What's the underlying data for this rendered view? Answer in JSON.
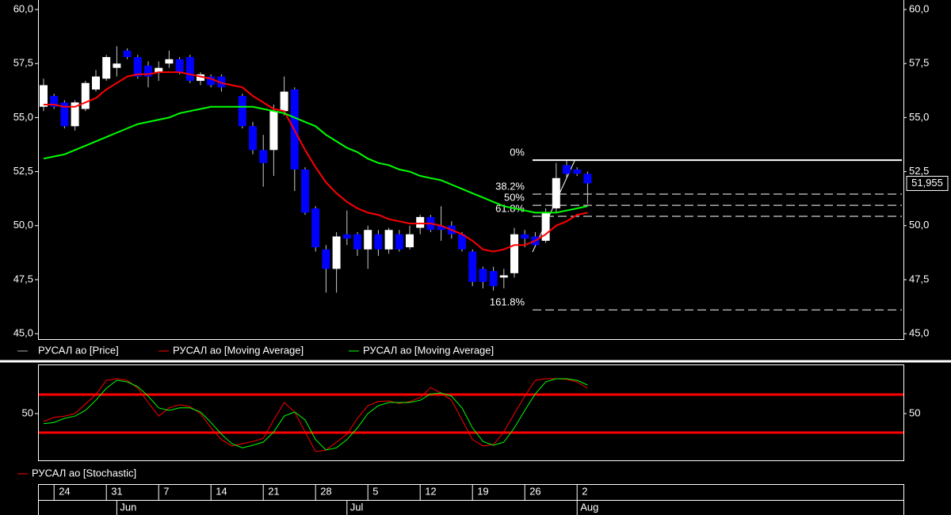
{
  "chart_data": [
    {
      "type": "candlestick",
      "categories": [
        null,
        "24",
        null,
        null,
        null,
        null,
        "31",
        null,
        null,
        null,
        null,
        "7",
        null,
        null,
        null,
        null,
        "14",
        null,
        null,
        null,
        null,
        "21",
        null,
        null,
        null,
        null,
        "28",
        null,
        null,
        null,
        null,
        "5",
        null,
        null,
        null,
        null,
        "12",
        null,
        null,
        null,
        null,
        "19",
        null,
        null,
        null,
        null,
        "26",
        null,
        null,
        null,
        null,
        "2",
        null
      ],
      "months": [
        null,
        null,
        null,
        null,
        null,
        null,
        null,
        "Jun",
        null,
        null,
        null,
        null,
        null,
        null,
        null,
        null,
        null,
        null,
        null,
        null,
        null,
        null,
        null,
        null,
        null,
        null,
        null,
        null,
        null,
        "Jul",
        null,
        null,
        null,
        null,
        null,
        null,
        null,
        null,
        null,
        null,
        null,
        null,
        null,
        null,
        null,
        null,
        null,
        null,
        null,
        null,
        null,
        "Aug",
        null
      ],
      "series": [
        {
          "name": "РУСАЛ ао [Price]",
          "color": "#ffffff",
          "down_color": "#0000ff",
          "open": [
            55.5,
            56.0,
            55.7,
            54.6,
            55.4,
            56.3,
            56.8,
            57.3,
            58.1,
            57.8,
            57.4,
            57.1,
            57.5,
            57.7,
            57.8,
            56.7,
            56.9,
            56.9,
            null,
            56.0,
            54.6,
            53.5,
            53.5,
            55.3,
            56.3,
            52.6,
            50.8,
            48.9,
            48.0,
            49.6,
            49.6,
            48.9,
            49.6,
            48.9,
            49.6,
            49.0,
            49.9,
            50.4,
            50.0,
            50.0,
            49.6,
            48.8,
            48.0,
            47.9,
            47.6,
            47.8,
            49.6,
            49.5,
            49.3,
            50.8,
            52.8,
            52.6,
            52.4
          ],
          "high": [
            56.8,
            56.1,
            55.8,
            55.8,
            56.7,
            57.2,
            57.9,
            58.3,
            58.2,
            57.9,
            57.6,
            57.6,
            58.1,
            57.8,
            57.9,
            57.1,
            57.0,
            57.0,
            null,
            56.1,
            54.8,
            54.2,
            55.6,
            56.9,
            56.4,
            52.7,
            50.9,
            49.1,
            49.7,
            50.7,
            49.7,
            50.0,
            49.8,
            49.9,
            49.8,
            50.0,
            50.5,
            50.5,
            50.9,
            50.2,
            49.7,
            48.9,
            48.1,
            48.1,
            48.0,
            49.9,
            49.8,
            49.7,
            50.8,
            52.9,
            53.0,
            52.7,
            52.5
          ],
          "low": [
            55.3,
            55.4,
            54.5,
            54.4,
            55.3,
            56.2,
            56.7,
            56.9,
            57.7,
            56.8,
            56.4,
            56.7,
            57.3,
            57.0,
            56.6,
            56.5,
            56.4,
            56.2,
            null,
            54.5,
            53.3,
            51.8,
            52.3,
            55.1,
            51.6,
            50.5,
            48.8,
            46.9,
            46.9,
            49.1,
            48.6,
            48.0,
            48.6,
            48.7,
            48.8,
            48.9,
            49.6,
            49.7,
            49.3,
            49.4,
            48.8,
            47.2,
            47.1,
            47.0,
            47.1,
            47.6,
            49.0,
            49.0,
            49.2,
            50.6,
            52.2,
            52.3,
            51.0
          ],
          "close": [
            56.5,
            55.5,
            54.6,
            55.7,
            56.6,
            56.9,
            57.8,
            57.5,
            57.8,
            56.9,
            56.9,
            57.3,
            57.7,
            57.1,
            56.7,
            57.0,
            56.5,
            56.4,
            null,
            54.6,
            53.5,
            52.9,
            55.3,
            56.2,
            52.6,
            50.6,
            49.0,
            48.0,
            49.5,
            49.4,
            48.9,
            49.8,
            48.9,
            49.8,
            48.9,
            49.6,
            50.4,
            49.8,
            49.8,
            49.6,
            48.9,
            47.4,
            47.4,
            47.2,
            47.7,
            49.6,
            49.4,
            49.1,
            50.6,
            52.2,
            52.4,
            52.4,
            51.955
          ],
          "last_label": "51,955"
        },
        {
          "name": "РУСАЛ ао [Moving Average]",
          "color": "#ff0000",
          "values": [
            55.6,
            55.6,
            55.5,
            55.5,
            55.7,
            55.9,
            56.3,
            56.6,
            56.9,
            57.0,
            57.0,
            57.1,
            57.1,
            57.1,
            57.0,
            56.9,
            56.8,
            56.6,
            56.5,
            56.4,
            56.0,
            55.7,
            55.4,
            55.3,
            54.4,
            53.5,
            52.7,
            52.0,
            51.5,
            51.1,
            50.8,
            50.6,
            50.5,
            50.3,
            50.2,
            50.1,
            50.1,
            50.1,
            50.0,
            49.8,
            49.6,
            49.3,
            48.9,
            48.8,
            48.9,
            49.1,
            49.1,
            49.3,
            49.6,
            50.0,
            50.2,
            50.5,
            50.6
          ]
        },
        {
          "name": "РУСАЛ ао [Moving Average]",
          "color": "#00ff00",
          "values": [
            53.1,
            53.2,
            53.3,
            53.5,
            53.7,
            53.9,
            54.1,
            54.3,
            54.5,
            54.7,
            54.8,
            54.9,
            55.0,
            55.2,
            55.3,
            55.4,
            55.5,
            55.5,
            55.5,
            55.5,
            55.5,
            55.4,
            55.3,
            55.2,
            55.0,
            54.8,
            54.6,
            54.2,
            53.9,
            53.6,
            53.4,
            53.1,
            52.9,
            52.8,
            52.6,
            52.5,
            52.3,
            52.2,
            52.1,
            51.9,
            51.7,
            51.5,
            51.3,
            51.1,
            50.9,
            50.8,
            50.7,
            50.6,
            50.6,
            50.6,
            50.7,
            50.8,
            50.9
          ]
        }
      ],
      "ylim": [
        44.75,
        60.44
      ],
      "yticks": [
        {
          "value": 45,
          "label": "45,0"
        },
        {
          "value": 47.5,
          "label": "47,5"
        },
        {
          "value": 50,
          "label": "50,0"
        },
        {
          "value": 52.5,
          "label": "52,5"
        },
        {
          "value": 55,
          "label": "55,0"
        },
        {
          "value": 57.5,
          "label": "57,5"
        },
        {
          "value": 60,
          "label": "60,0"
        }
      ],
      "fibonacci": {
        "color": "#ffffff",
        "levels": [
          {
            "value": 53.03,
            "label": "0%"
          },
          {
            "value": 51.46,
            "label": "38.2%"
          },
          {
            "value": 50.94,
            "label": "50%"
          },
          {
            "value": 50.43,
            "label": "61.8%"
          },
          {
            "value": 46.1,
            "label": "161.8%"
          }
        ]
      }
    },
    {
      "type": "line",
      "series": [
        {
          "name": "РУСАЛ ао [Stochastic]",
          "color": "#ff0000",
          "values": [
            37.5,
            44,
            46,
            50,
            65,
            80,
            102.5,
            105,
            102.5,
            90,
            67.5,
            46,
            59,
            64,
            61,
            50,
            27.5,
            9,
            -1,
            2.5,
            6,
            11,
            40,
            67.5,
            52.5,
            21,
            -10,
            -7.5,
            5,
            17.5,
            42.5,
            62.5,
            69,
            70,
            66,
            69,
            75,
            91,
            82.5,
            71,
            40,
            9,
            -1,
            1,
            21,
            50,
            77.5,
            102.5,
            105,
            105,
            104,
            100,
            90
          ]
        },
        {
          "color": "#00ff00",
          "values": [
            34,
            36,
            42.5,
            46,
            55,
            71,
            90,
            102.5,
            100,
            92.5,
            77.5,
            59,
            55,
            59,
            59,
            52.5,
            36,
            17.5,
            2.5,
            -4,
            0,
            5,
            21,
            46,
            52.5,
            40,
            9,
            -7.5,
            -4,
            9,
            27.5,
            50,
            62.5,
            67.5,
            67.5,
            67.5,
            71,
            81,
            82.5,
            77.5,
            59,
            27.5,
            6,
            0,
            5,
            27.5,
            55,
            81,
            100,
            105,
            105,
            102.5,
            95
          ]
        }
      ],
      "ylim": [
        -25,
        127.5
      ],
      "yticks": [
        50
      ],
      "levels": [
        20,
        80
      ],
      "level_color": "#ff0000"
    }
  ]
}
